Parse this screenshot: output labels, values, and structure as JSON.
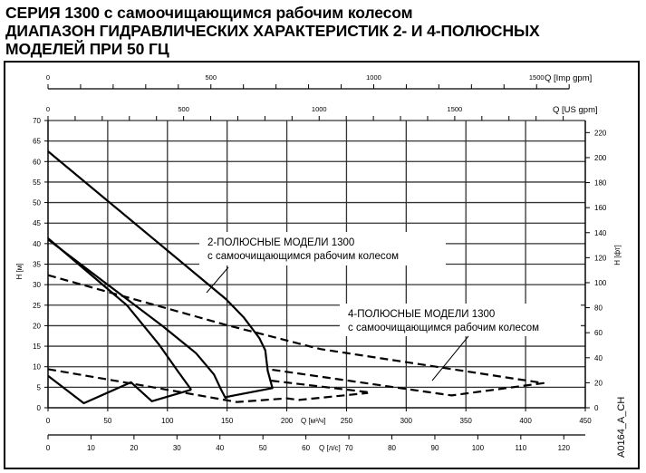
{
  "title": {
    "line1": "СЕРИЯ 1300 с самоочищающимся рабочим колесом",
    "line2": "ДИАПАЗОН ГИДРАВЛИЧЕСКИХ ХАРАКТЕРИСТИК 2- И 4-ПОЛЮСНЫХ",
    "line3": "МОДЕЛЕЙ ПРИ 50 ГЦ"
  },
  "figure_code": "A0164_A_CH",
  "chart_data": {
    "type": "line",
    "grid": true,
    "x_axis": {
      "label": "Q [м³/ч]",
      "range": [
        0,
        450
      ],
      "ticks": [
        0,
        50,
        100,
        150,
        200,
        250,
        300,
        350,
        400,
        450
      ]
    },
    "y_axis": {
      "label": "H [м]",
      "range": [
        0,
        70
      ],
      "ticks": [
        0,
        5,
        10,
        15,
        20,
        25,
        30,
        35,
        40,
        45,
        50,
        55,
        60,
        65,
        70
      ]
    },
    "y2_axis": {
      "label": "H [фт]",
      "ticks": [
        0,
        20,
        40,
        60,
        80,
        100,
        120,
        140,
        160,
        180,
        200,
        220
      ]
    },
    "x_top_axes": [
      {
        "label": "Q [Imp gpm]",
        "ticks": [
          0,
          500,
          1000,
          1500
        ],
        "minor_step": 100
      },
      {
        "label": "Q [US gpm]",
        "ticks": [
          0,
          500,
          1000,
          1500
        ],
        "minor_step": 100
      }
    ],
    "x_bottom_axis2": {
      "label": "Q [л/с]",
      "ticks": [
        0,
        10,
        20,
        30,
        40,
        50,
        60,
        70,
        80,
        90,
        100,
        110,
        120
      ]
    },
    "annotations": [
      {
        "line1": "2-ПОЛЮСНЫЕ МОДЕЛИ 1300",
        "line2": "с самоочищающимся рабочим колесом"
      },
      {
        "line1": "4-ПОЛЮСНЫЕ МОДЕЛИ 1300",
        "line2": "с самоочищающимся рабочим колесом"
      }
    ],
    "series": [
      {
        "group": "2-pole",
        "style": "solid",
        "points": [
          [
            0,
            62.5
          ],
          [
            149,
            26.5
          ],
          [
            164,
            22
          ],
          [
            177,
            17
          ],
          [
            182,
            14
          ],
          [
            184,
            9
          ],
          [
            188,
            4.8
          ],
          [
            149,
            2.6
          ]
        ]
      },
      {
        "group": "2-pole",
        "style": "solid",
        "points": [
          [
            0,
            41.3
          ],
          [
            66,
            25
          ],
          [
            93,
            15.4
          ],
          [
            109,
            8.8
          ],
          [
            120,
            4.4
          ]
        ]
      },
      {
        "group": "2-pole",
        "style": "solid",
        "points": [
          [
            0,
            41
          ],
          [
            49,
            30.2
          ],
          [
            96,
            19.9
          ],
          [
            124,
            13.3
          ],
          [
            139,
            8.1
          ],
          [
            145,
            4.4
          ],
          [
            149,
            2.2
          ]
        ]
      },
      {
        "group": "2-pole",
        "style": "solid",
        "points": [
          [
            0,
            7.8
          ],
          [
            30,
            1.1
          ],
          [
            69.5,
            6.2
          ],
          [
            87,
            1.6
          ],
          [
            120,
            4.4
          ]
        ]
      },
      {
        "group": "4-pole",
        "style": "dashed",
        "points": [
          [
            0,
            32.3
          ],
          [
            149,
            20.2
          ],
          [
            228,
            14.3
          ],
          [
            415,
            6
          ],
          [
            338,
            3
          ],
          [
            187,
            9.3
          ]
        ]
      },
      {
        "group": "4-pole",
        "style": "dashed",
        "points": [
          [
            187,
            6.6
          ],
          [
            268,
            3.8
          ]
        ]
      },
      {
        "group": "4-pole",
        "style": "dashed",
        "points": [
          [
            0,
            9.4
          ],
          [
            88,
            5
          ],
          [
            150,
            1.8
          ],
          [
            158,
            1.4
          ],
          [
            200,
            2.3
          ],
          [
            210,
            1.9
          ],
          [
            268,
            3.6
          ]
        ]
      }
    ]
  }
}
